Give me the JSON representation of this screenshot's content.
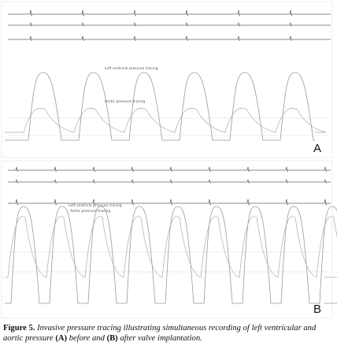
{
  "panels": [
    {
      "label": "A",
      "annotations": [
        "Left ventricle pressure tracing",
        "Aortic pressure tracing"
      ]
    },
    {
      "label": "B",
      "annotations": [
        "Left ventricle pressure tracing",
        "Aortic pressure tracing"
      ]
    }
  ],
  "caption": {
    "figure_label": "Figure 5.",
    "text_1": "Invasive pressure tracing illustrating simultaneous recording of left ventricular and aortic pressure",
    "a": "(A)",
    "text_2": "before and",
    "b": "(B)",
    "text_3": "after valve implantation."
  }
}
